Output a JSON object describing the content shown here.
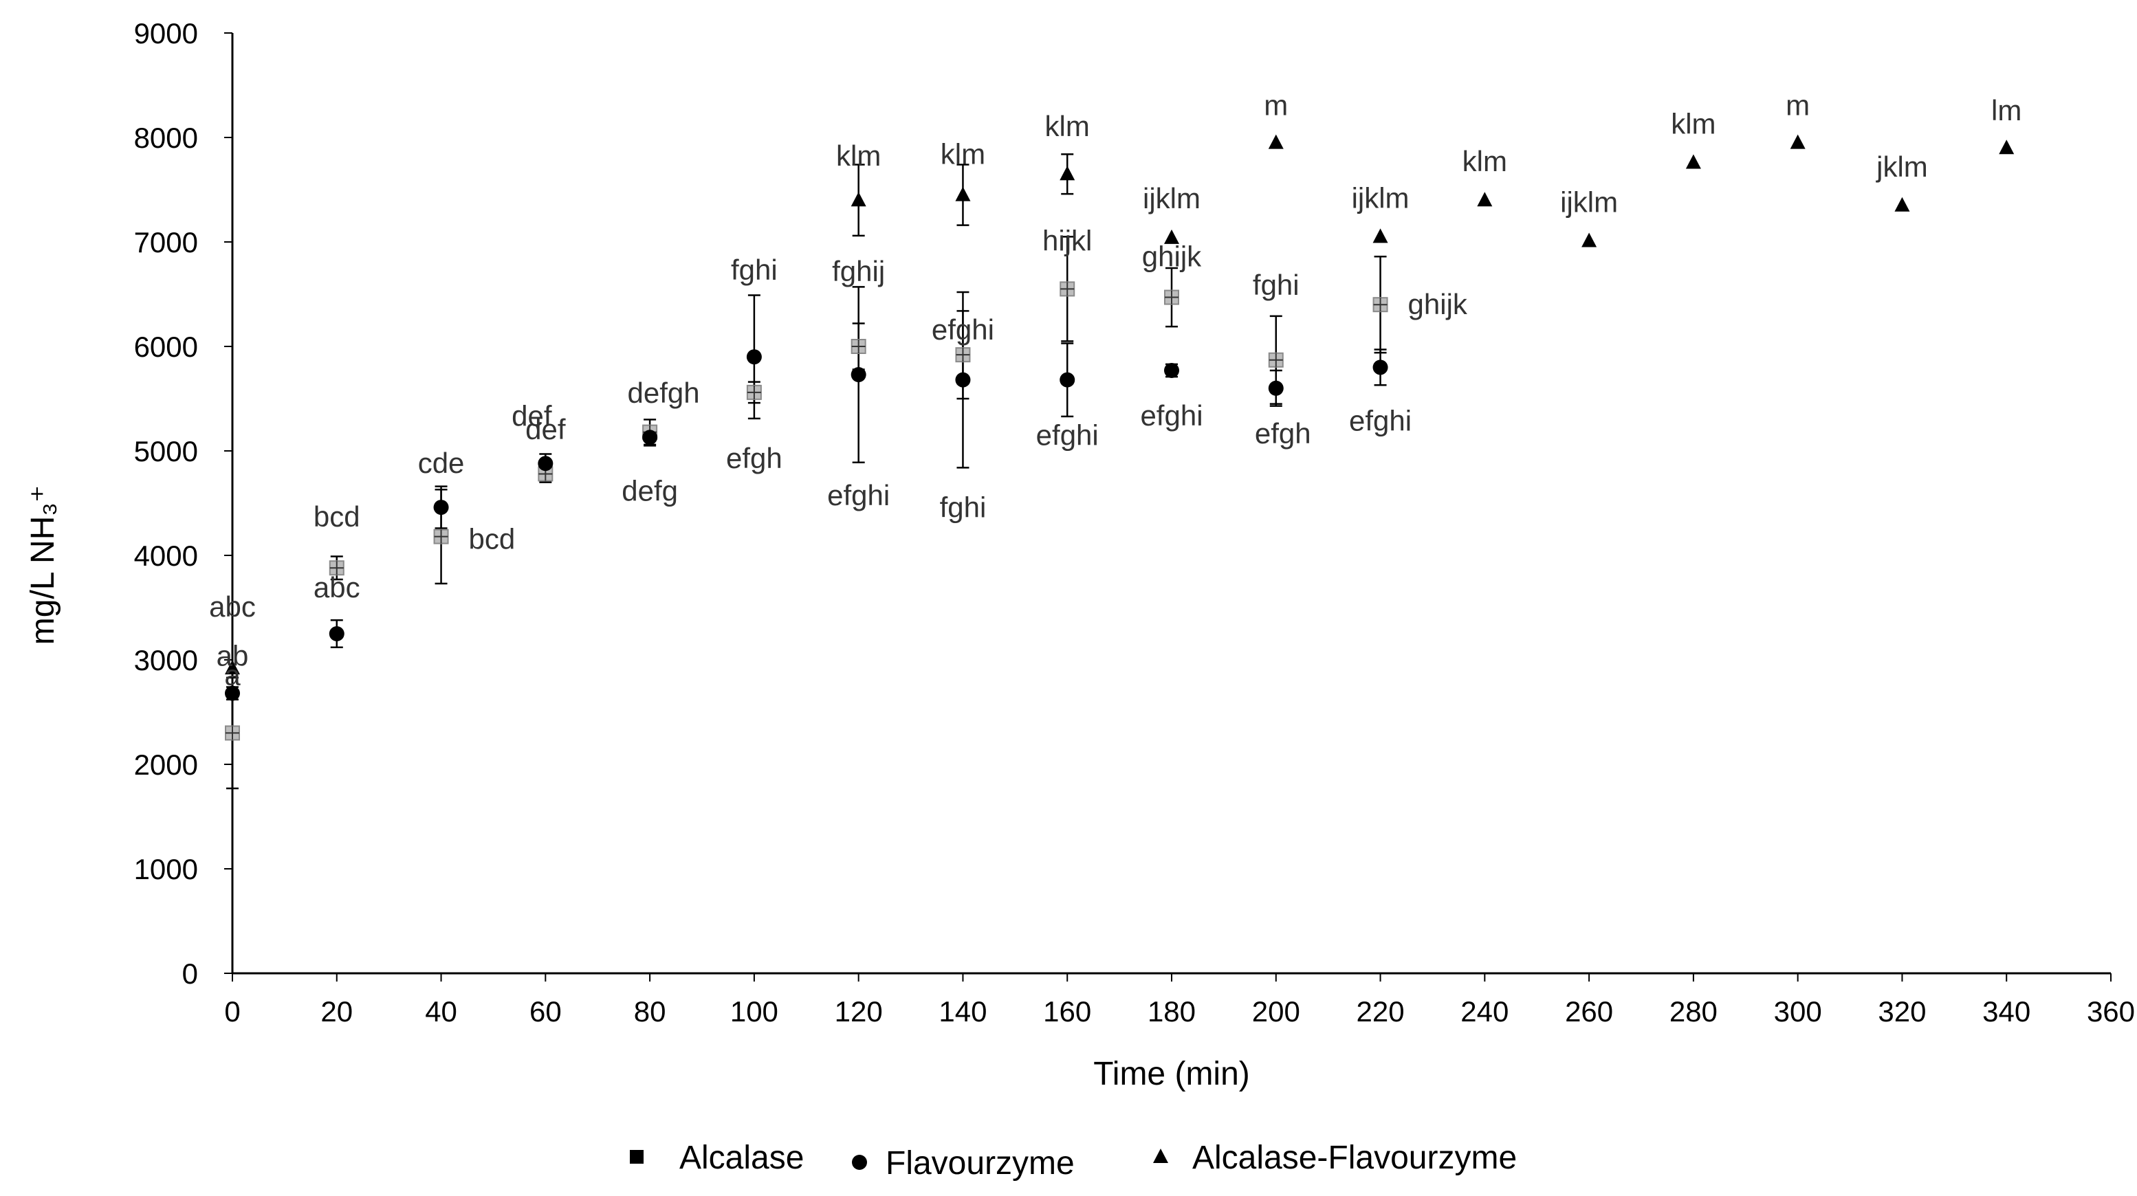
{
  "chart_data": {
    "type": "scatter",
    "title": "",
    "xlabel": "Time (min)",
    "ylabel": "mg/L NH₃⁺",
    "xlim": [
      0,
      360
    ],
    "ylim": [
      0,
      9000
    ],
    "xticks": [
      0,
      20,
      40,
      60,
      80,
      100,
      120,
      140,
      160,
      180,
      200,
      220,
      240,
      260,
      280,
      300,
      320,
      340,
      360
    ],
    "yticks": [
      0,
      1000,
      2000,
      3000,
      4000,
      5000,
      6000,
      7000,
      8000,
      9000
    ],
    "grid": false,
    "legend_position": "bottom",
    "series": [
      {
        "name": "Alcalase",
        "marker": "square",
        "color": "#bdbdbd",
        "points": [
          {
            "x": 0,
            "y": 2300,
            "err": 530,
            "label": "a"
          },
          {
            "x": 20,
            "y": 3880,
            "err": 110,
            "label": "bcd"
          },
          {
            "x": 40,
            "y": 4180,
            "err": 450,
            "label": "bcd"
          },
          {
            "x": 60,
            "y": 4780,
            "err": 80,
            "label": "def"
          },
          {
            "x": 80,
            "y": 5180,
            "err": 120,
            "label": "defg"
          },
          {
            "x": 100,
            "y": 5560,
            "err": 100,
            "label": "efgh"
          },
          {
            "x": 120,
            "y": 6000,
            "err": 220,
            "label": "fghij"
          },
          {
            "x": 140,
            "y": 5920,
            "err": 420,
            "label": "efghi"
          },
          {
            "x": 160,
            "y": 6550,
            "err": 500,
            "label": "hijkl"
          },
          {
            "x": 180,
            "y": 6470,
            "err": 280,
            "label": "ghijk"
          },
          {
            "x": 200,
            "y": 5870,
            "err": 420,
            "label": "fghi"
          },
          {
            "x": 220,
            "y": 6400,
            "err": 460,
            "label": "ghijk"
          }
        ]
      },
      {
        "name": "Flavourzyme",
        "marker": "circle",
        "color": "#000000",
        "points": [
          {
            "x": 0,
            "y": 2680,
            "err": 60,
            "label": "ab"
          },
          {
            "x": 20,
            "y": 3250,
            "err": 130,
            "label": "abc"
          },
          {
            "x": 40,
            "y": 4460,
            "err": 200,
            "label": "cde"
          },
          {
            "x": 60,
            "y": 4880,
            "err": 90,
            "label": "def"
          },
          {
            "x": 80,
            "y": 5130,
            "err": 80,
            "label": "defgh"
          },
          {
            "x": 100,
            "y": 5900,
            "err": 590,
            "label": "fghi"
          },
          {
            "x": 120,
            "y": 5730,
            "err": 840,
            "label": "efghi"
          },
          {
            "x": 140,
            "y": 5680,
            "err": 840,
            "label": "fghi"
          },
          {
            "x": 160,
            "y": 5680,
            "err": 350,
            "label": "efghi"
          },
          {
            "x": 180,
            "y": 5770,
            "err": 60,
            "label": "efghi"
          },
          {
            "x": 200,
            "y": 5600,
            "err": 170,
            "label": "efgh"
          },
          {
            "x": 220,
            "y": 5800,
            "err": 170,
            "label": "efghi"
          }
        ]
      },
      {
        "name": "Alcalase-Flavourzyme",
        "marker": "triangle",
        "color": "#000000",
        "points": [
          {
            "x": 0,
            "y": 2920,
            "err": 0,
            "label": "abc"
          },
          {
            "x": 120,
            "y": 7400,
            "err": 340,
            "label": "klm"
          },
          {
            "x": 140,
            "y": 7450,
            "err": 290,
            "label": "klm"
          },
          {
            "x": 160,
            "y": 7650,
            "err": 190,
            "label": "klm"
          },
          {
            "x": 180,
            "y": 7040,
            "err": 0,
            "label": "ijklm"
          },
          {
            "x": 200,
            "y": 7950,
            "err": 0,
            "label": "m"
          },
          {
            "x": 220,
            "y": 7050,
            "err": 0,
            "label": "ijklm"
          },
          {
            "x": 240,
            "y": 7400,
            "err": 0,
            "label": "klm"
          },
          {
            "x": 260,
            "y": 7010,
            "err": 0,
            "label": "ijklm"
          },
          {
            "x": 280,
            "y": 7760,
            "err": 0,
            "label": "klm"
          },
          {
            "x": 300,
            "y": 7950,
            "err": 0,
            "label": "m"
          },
          {
            "x": 320,
            "y": 7350,
            "err": 0,
            "label": "jklm"
          },
          {
            "x": 340,
            "y": 7900,
            "err": 0,
            "label": "lm"
          }
        ]
      }
    ]
  }
}
